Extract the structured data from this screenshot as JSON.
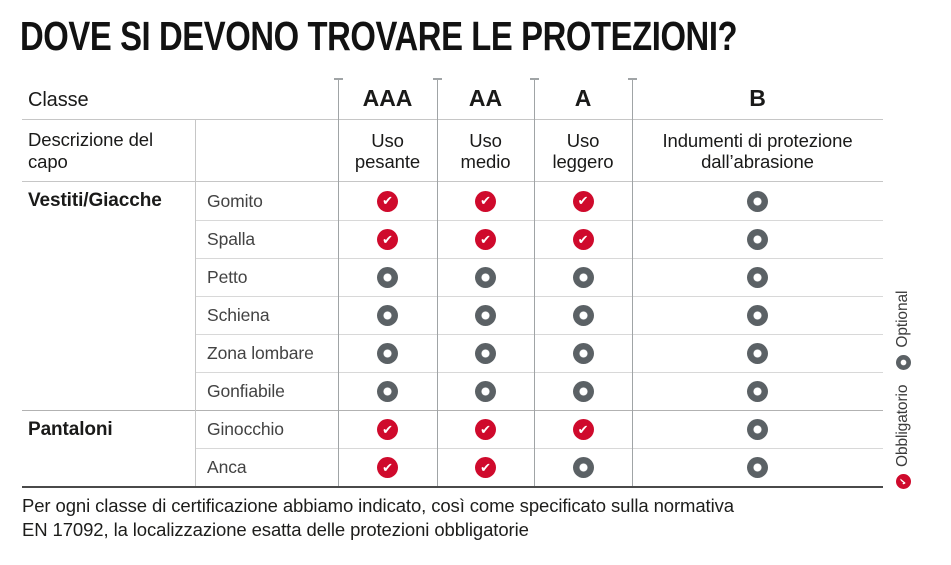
{
  "chart_data": {
    "type": "table",
    "title": "DOVE SI DEVONO TROVARE LE PROTEZIONI?",
    "corner_header": "Classe",
    "row_header": "Descrizione del capo",
    "classes": [
      {
        "code": "AAA",
        "desc": "Uso pesante"
      },
      {
        "code": "AA",
        "desc": "Uso medio"
      },
      {
        "code": "A",
        "desc": "Uso leggero"
      },
      {
        "code": "B",
        "desc": "Indumenti di protezione dall’abrasione"
      }
    ],
    "rows": [
      {
        "group": "Vestiti/Giacche",
        "part": "Gomito",
        "cells": [
          "mandatory",
          "mandatory",
          "mandatory",
          "optional"
        ]
      },
      {
        "group": "",
        "part": "Spalla",
        "cells": [
          "mandatory",
          "mandatory",
          "mandatory",
          "optional"
        ]
      },
      {
        "group": "",
        "part": "Petto",
        "cells": [
          "optional",
          "optional",
          "optional",
          "optional"
        ]
      },
      {
        "group": "",
        "part": "Schiena",
        "cells": [
          "optional",
          "optional",
          "optional",
          "optional"
        ]
      },
      {
        "group": "",
        "part": "Zona lombare",
        "cells": [
          "optional",
          "optional",
          "optional",
          "optional"
        ]
      },
      {
        "group": "",
        "part": "Gonfiabile",
        "cells": [
          "optional",
          "optional",
          "optional",
          "optional"
        ]
      },
      {
        "group": "Pantaloni",
        "part": "Ginocchio",
        "cells": [
          "mandatory",
          "mandatory",
          "mandatory",
          "optional"
        ]
      },
      {
        "group": "",
        "part": "Anca",
        "cells": [
          "mandatory",
          "mandatory",
          "optional",
          "optional"
        ]
      }
    ],
    "legend": {
      "mandatory_label": "Obbligatorio",
      "optional_label": "Optional"
    },
    "footnote_line1": "Per ogni classe di certificazione abbiamo indicato, così come specificato sulla normativa",
    "footnote_line2": "EN 17092, la localizzazione esatta delle protezioni obbligatorie",
    "colors": {
      "mandatory_red": "#cf0a2c",
      "optional_gray": "#5b6165"
    }
  }
}
